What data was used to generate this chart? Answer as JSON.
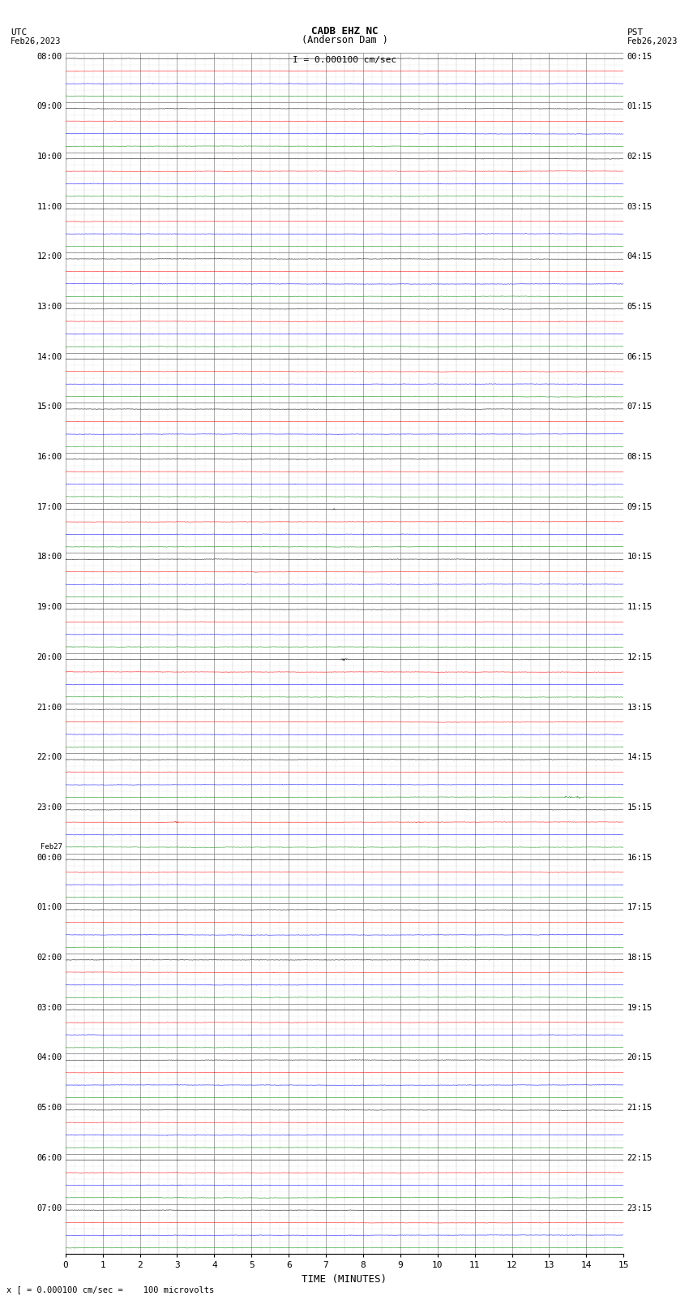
{
  "title_line1": "CADB EHZ NC",
  "title_line2": "(Anderson Dam )",
  "scale_label": "I = 0.000100 cm/sec",
  "bottom_label": "x [ = 0.000100 cm/sec =    100 microvolts",
  "xlabel": "TIME (MINUTES)",
  "utc_times": [
    "08:00",
    "09:00",
    "10:00",
    "11:00",
    "12:00",
    "13:00",
    "14:00",
    "15:00",
    "16:00",
    "17:00",
    "18:00",
    "19:00",
    "20:00",
    "21:00",
    "22:00",
    "23:00",
    "Feb27\n00:00",
    "01:00",
    "02:00",
    "03:00",
    "04:00",
    "05:00",
    "06:00",
    "07:00"
  ],
  "pst_times": [
    "00:15",
    "01:15",
    "02:15",
    "03:15",
    "04:15",
    "05:15",
    "06:15",
    "07:15",
    "08:15",
    "09:15",
    "10:15",
    "11:15",
    "12:15",
    "13:15",
    "14:15",
    "15:15",
    "16:15",
    "17:15",
    "18:15",
    "19:15",
    "20:15",
    "21:15",
    "22:15",
    "23:15"
  ],
  "bg_color": "#ffffff",
  "vgrid_major_color": "#888888",
  "vgrid_minor_color": "#bbbbbb",
  "hgrid_color": "#888888",
  "trace_colors": [
    "#000000",
    "#ff0000",
    "#0000ff",
    "#008800"
  ],
  "figsize": [
    8.5,
    16.13
  ],
  "dpi": 100,
  "total_rows": 24,
  "traces_per_row": 4,
  "noise_std": 0.038,
  "special_events": [
    {
      "row": 12,
      "trace": 0,
      "time": 7.5,
      "amp": 0.25
    },
    {
      "row": 14,
      "trace": 3,
      "time": 13.5,
      "amp": 0.3
    },
    {
      "row": 14,
      "trace": 3,
      "time": 13.8,
      "amp": 0.25
    },
    {
      "row": 9,
      "trace": 0,
      "time": 7.2,
      "amp": 0.15
    },
    {
      "row": 15,
      "trace": 1,
      "time": 3.0,
      "amp": 0.18
    },
    {
      "row": 15,
      "trace": 1,
      "time": 9.5,
      "amp": 0.15
    }
  ]
}
